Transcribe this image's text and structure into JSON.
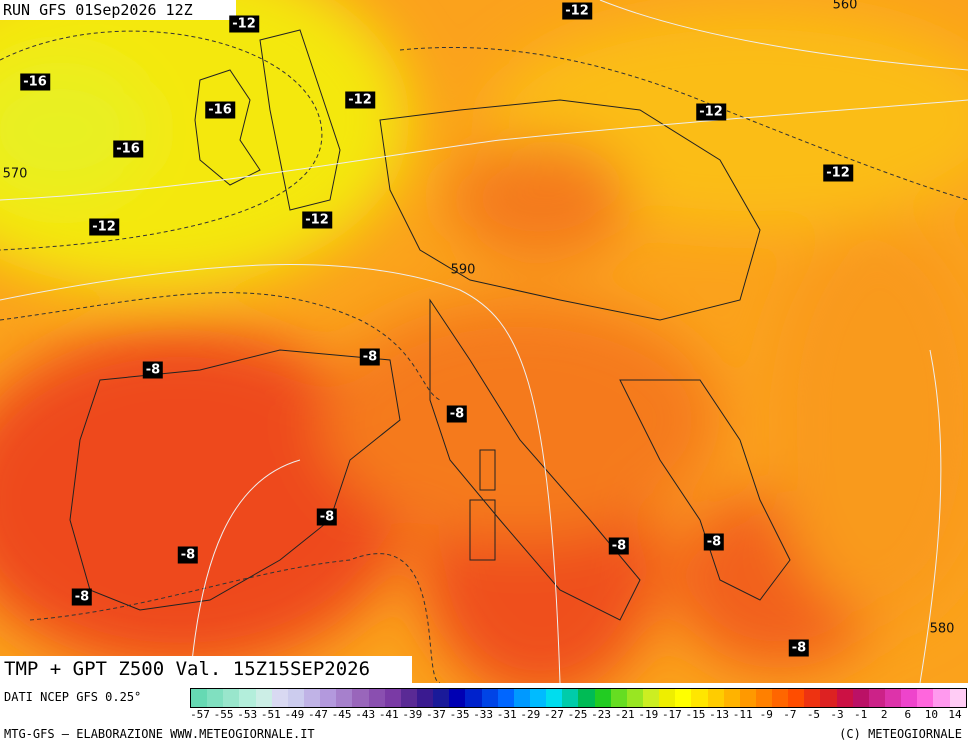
{
  "run_label": "RUN GFS 01Sep2026 12Z",
  "title": "TMP + GPT Z500 Val. 15Z15SEP2026",
  "source": "DATI NCEP GFS 0.25°",
  "credit_left": "MTG-GFS — ELABORAZIONE WWW.METEOGIORNALE.IT",
  "credit_right": "(C) METEOGIORNALE",
  "temperature_labels": [
    "-12",
    "-12",
    "-12",
    "-12",
    "-12",
    "-12",
    "-12",
    "-16",
    "-16",
    "-16",
    "-8",
    "-8",
    "-8",
    "-8",
    "-8",
    "-8",
    "-8",
    "-8",
    "-8"
  ],
  "geopotential_labels": [
    "560",
    "570",
    "590",
    "580"
  ],
  "colorbar": {
    "labels": [
      "-57",
      "-55",
      "-53",
      "-51",
      "-49",
      "-47",
      "-45",
      "-43",
      "-41",
      "-39",
      "-37",
      "-35",
      "-33",
      "-31",
      "-29",
      "-27",
      "-25",
      "-23",
      "-21",
      "-19",
      "-17",
      "-15",
      "-13",
      "-11",
      "-9",
      "-7",
      "-5",
      "-3",
      "-1",
      "2",
      "6",
      "10",
      "14"
    ],
    "colors": [
      "#66d9b3",
      "#80e0c0",
      "#99e6cc",
      "#b3eedb",
      "#cceee6",
      "#d9d9f2",
      "#ccccee",
      "#c0b3e6",
      "#b399dd",
      "#a680cc",
      "#9966bb",
      "#8a4fb0",
      "#7a3aa5",
      "#5a2a95",
      "#3a1a90",
      "#1a1a99",
      "#0000b3",
      "#0022cc",
      "#0044e6",
      "#0066ff",
      "#0099ff",
      "#00bbff",
      "#00ddee",
      "#00ccaa",
      "#00bb55",
      "#22cc22",
      "#66dd22",
      "#99e622",
      "#ccee22",
      "#eeee00",
      "#ffff00",
      "#ffe600",
      "#ffcc00",
      "#ffb300",
      "#ff9900",
      "#ff8000",
      "#ff6600",
      "#ff4d00",
      "#ee3311",
      "#dd2222",
      "#cc1144",
      "#bb1166",
      "#cc2288",
      "#dd33aa",
      "#ee44cc",
      "#ff66dd",
      "#ff99ee",
      "#ffccf5"
    ]
  }
}
